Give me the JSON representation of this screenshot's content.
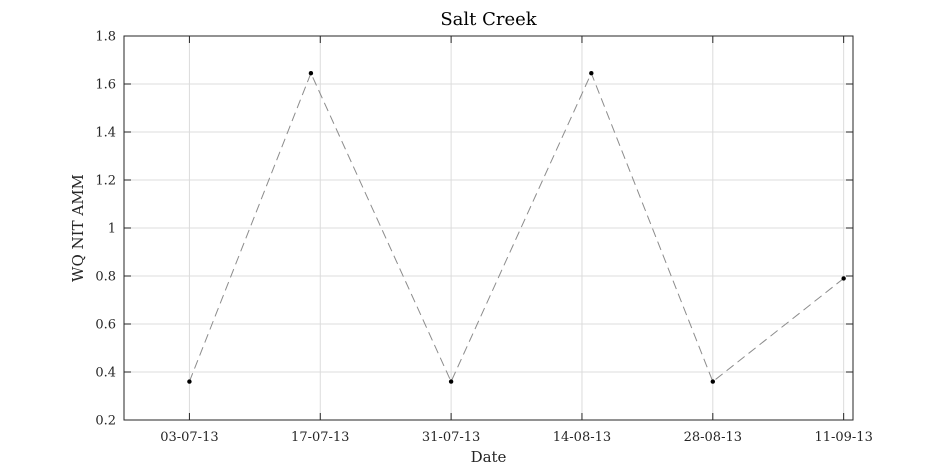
{
  "chart_data": {
    "type": "line",
    "title": "Salt Creek",
    "xlabel": "Date",
    "ylabel": "WQ NIT AMM",
    "x_ticks": [
      "03-07-13",
      "17-07-13",
      "31-07-13",
      "14-08-13",
      "28-08-13",
      "11-09-13"
    ],
    "y_ticks": [
      "0.2",
      "0.4",
      "0.6",
      "0.8",
      "1",
      "1.2",
      "1.4",
      "1.6",
      "1.8"
    ],
    "xlim": [
      "2013-06-26",
      "2013-09-12"
    ],
    "ylim": [
      0.2,
      1.8
    ],
    "grid": true,
    "series": [
      {
        "x": [
          "2013-07-03",
          "2013-07-16",
          "2013-07-31",
          "2013-08-15",
          "2013-08-28",
          "2013-09-11"
        ],
        "y": [
          0.36,
          1.645,
          0.36,
          1.645,
          0.36,
          0.79
        ],
        "line_style": "dashed",
        "line_color": "#8c8c8c",
        "marker_color": "#000000"
      }
    ]
  }
}
